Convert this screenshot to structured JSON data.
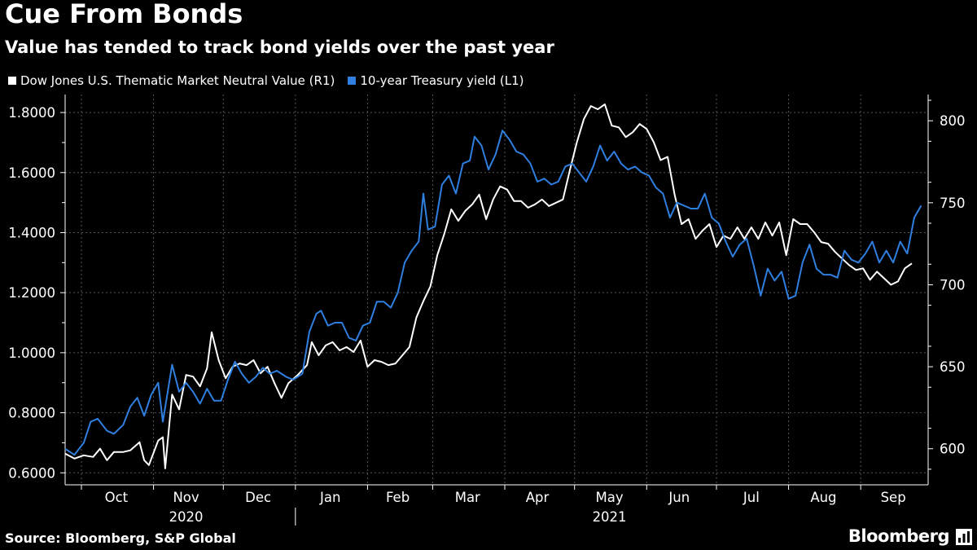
{
  "title": "Cue From Bonds",
  "subtitle": "Value has tended to track bond yields over the past year",
  "source": "Source: Bloomberg, S&P Global",
  "brand": "Bloomberg",
  "colors": {
    "value_series": "#ffffff",
    "yield_series": "#2f7fe0",
    "grid": "#555555",
    "background": "#000000"
  },
  "chart_data": {
    "type": "line",
    "title": "Cue From Bonds",
    "subtitle": "Value has tended to track bond yields over the past year",
    "legend_position": "top-left",
    "grid": true,
    "x_range": [
      "2020-09-24",
      "2021-09-30"
    ],
    "x_ticks": [
      {
        "label": "Oct",
        "date": "2020-10-16"
      },
      {
        "label": "Nov",
        "date": "2020-11-15"
      },
      {
        "label": "Dec",
        "date": "2020-12-16"
      },
      {
        "label": "Jan",
        "date": "2021-01-16"
      },
      {
        "label": "Feb",
        "date": "2021-02-14"
      },
      {
        "label": "Mar",
        "date": "2021-03-16"
      },
      {
        "label": "Apr",
        "date": "2021-04-15"
      },
      {
        "label": "May",
        "date": "2021-05-16"
      },
      {
        "label": "Jun",
        "date": "2021-06-15"
      },
      {
        "label": "Jul",
        "date": "2021-07-16"
      },
      {
        "label": "Aug",
        "date": "2021-08-16"
      },
      {
        "label": "Sep",
        "date": "2021-09-15"
      }
    ],
    "x_year_labels": [
      {
        "label": "2020",
        "date": "2020-11-15"
      },
      {
        "label": "2021",
        "date": "2021-05-16"
      }
    ],
    "left_axis": {
      "label": "L1",
      "range": [
        0.56,
        1.86
      ],
      "ticks": [
        0.6,
        0.8,
        1.0,
        1.2,
        1.4,
        1.6,
        1.8
      ],
      "tick_labels": [
        "0.6000",
        "0.8000",
        "1.0000",
        "1.2000",
        "1.4000",
        "1.6000",
        "1.8000"
      ]
    },
    "right_axis": {
      "label": "R1",
      "range": [
        578,
        816
      ],
      "ticks": [
        600,
        650,
        700,
        750,
        800
      ],
      "tick_labels": [
        "600",
        "650",
        "700",
        "750",
        "800"
      ]
    },
    "series": [
      {
        "name": "Dow Jones U.S. Thematic Market Neutral Value (R1)",
        "axis": "right",
        "color": "#ffffff",
        "points": [
          [
            "2020-09-24",
            597
          ],
          [
            "2020-09-28",
            594
          ],
          [
            "2020-10-02",
            596
          ],
          [
            "2020-10-06",
            595
          ],
          [
            "2020-10-09",
            600
          ],
          [
            "2020-10-12",
            593
          ],
          [
            "2020-10-15",
            598
          ],
          [
            "2020-10-19",
            598
          ],
          [
            "2020-10-22",
            599
          ],
          [
            "2020-10-26",
            604
          ],
          [
            "2020-10-28",
            593
          ],
          [
            "2020-10-30",
            590
          ],
          [
            "2020-11-03",
            605
          ],
          [
            "2020-11-05",
            607
          ],
          [
            "2020-11-06",
            588
          ],
          [
            "2020-11-09",
            633
          ],
          [
            "2020-11-12",
            624
          ],
          [
            "2020-11-15",
            645
          ],
          [
            "2020-11-18",
            644
          ],
          [
            "2020-11-21",
            638
          ],
          [
            "2020-11-24",
            649
          ],
          [
            "2020-11-26",
            671
          ],
          [
            "2020-11-29",
            654
          ],
          [
            "2020-12-02",
            643
          ],
          [
            "2020-12-05",
            650
          ],
          [
            "2020-12-08",
            652
          ],
          [
            "2020-12-11",
            651
          ],
          [
            "2020-12-14",
            654
          ],
          [
            "2020-12-17",
            646
          ],
          [
            "2020-12-20",
            650
          ],
          [
            "2020-12-23",
            640
          ],
          [
            "2020-12-26",
            631
          ],
          [
            "2020-12-29",
            640
          ],
          [
            "2021-01-02",
            645
          ],
          [
            "2021-01-06",
            651
          ],
          [
            "2021-01-08",
            665
          ],
          [
            "2021-01-11",
            657
          ],
          [
            "2021-01-14",
            663
          ],
          [
            "2021-01-17",
            665
          ],
          [
            "2021-01-20",
            660
          ],
          [
            "2021-01-23",
            662
          ],
          [
            "2021-01-26",
            659
          ],
          [
            "2021-01-29",
            666
          ],
          [
            "2021-02-01",
            650
          ],
          [
            "2021-02-04",
            654
          ],
          [
            "2021-02-07",
            653
          ],
          [
            "2021-02-10",
            651
          ],
          [
            "2021-02-13",
            652
          ],
          [
            "2021-02-16",
            657
          ],
          [
            "2021-02-19",
            662
          ],
          [
            "2021-02-22",
            680
          ],
          [
            "2021-02-25",
            690
          ],
          [
            "2021-02-28",
            699
          ],
          [
            "2021-03-03",
            718
          ],
          [
            "2021-03-06",
            731
          ],
          [
            "2021-03-09",
            746
          ],
          [
            "2021-03-12",
            739
          ],
          [
            "2021-03-15",
            745
          ],
          [
            "2021-03-18",
            749
          ],
          [
            "2021-03-21",
            755
          ],
          [
            "2021-03-24",
            740
          ],
          [
            "2021-03-27",
            752
          ],
          [
            "2021-03-30",
            760
          ],
          [
            "2021-04-02",
            758
          ],
          [
            "2021-04-05",
            751
          ],
          [
            "2021-04-08",
            751
          ],
          [
            "2021-04-11",
            747
          ],
          [
            "2021-04-14",
            749
          ],
          [
            "2021-04-17",
            752
          ],
          [
            "2021-04-20",
            748
          ],
          [
            "2021-04-23",
            750
          ],
          [
            "2021-04-26",
            752
          ],
          [
            "2021-04-29",
            770
          ],
          [
            "2021-05-02",
            787
          ],
          [
            "2021-05-05",
            801
          ],
          [
            "2021-05-08",
            809
          ],
          [
            "2021-05-11",
            807
          ],
          [
            "2021-05-14",
            810
          ],
          [
            "2021-05-17",
            797
          ],
          [
            "2021-05-20",
            796
          ],
          [
            "2021-05-23",
            790
          ],
          [
            "2021-05-26",
            793
          ],
          [
            "2021-05-29",
            798
          ],
          [
            "2021-06-01",
            795
          ],
          [
            "2021-06-04",
            787
          ],
          [
            "2021-06-07",
            776
          ],
          [
            "2021-06-10",
            778
          ],
          [
            "2021-06-13",
            755
          ],
          [
            "2021-06-16",
            737
          ],
          [
            "2021-06-19",
            740
          ],
          [
            "2021-06-22",
            728
          ],
          [
            "2021-06-25",
            733
          ],
          [
            "2021-06-28",
            737
          ],
          [
            "2021-07-01",
            723
          ],
          [
            "2021-07-04",
            730
          ],
          [
            "2021-07-07",
            728
          ],
          [
            "2021-07-10",
            735
          ],
          [
            "2021-07-13",
            728
          ],
          [
            "2021-07-16",
            735
          ],
          [
            "2021-07-19",
            728
          ],
          [
            "2021-07-22",
            738
          ],
          [
            "2021-07-25",
            730
          ],
          [
            "2021-07-28",
            738
          ],
          [
            "2021-07-31",
            718
          ],
          [
            "2021-08-03",
            740
          ],
          [
            "2021-08-06",
            737
          ],
          [
            "2021-08-09",
            737
          ],
          [
            "2021-08-12",
            732
          ],
          [
            "2021-08-15",
            726
          ],
          [
            "2021-08-18",
            725
          ],
          [
            "2021-08-21",
            720
          ],
          [
            "2021-08-24",
            716
          ],
          [
            "2021-08-27",
            712
          ],
          [
            "2021-08-30",
            709
          ],
          [
            "2021-09-02",
            710
          ],
          [
            "2021-09-05",
            703
          ],
          [
            "2021-09-08",
            708
          ],
          [
            "2021-09-11",
            704
          ],
          [
            "2021-09-14",
            700
          ],
          [
            "2021-09-17",
            702
          ],
          [
            "2021-09-20",
            710
          ],
          [
            "2021-09-23",
            713
          ]
        ]
      },
      {
        "name": "10-year Treasury yield (L1)",
        "axis": "left",
        "color": "#2f7fe0",
        "points": [
          [
            "2020-09-24",
            0.68
          ],
          [
            "2020-09-28",
            0.66
          ],
          [
            "2020-10-02",
            0.7
          ],
          [
            "2020-10-05",
            0.77
          ],
          [
            "2020-10-08",
            0.78
          ],
          [
            "2020-10-12",
            0.74
          ],
          [
            "2020-10-15",
            0.73
          ],
          [
            "2020-10-19",
            0.76
          ],
          [
            "2020-10-22",
            0.82
          ],
          [
            "2020-10-25",
            0.85
          ],
          [
            "2020-10-28",
            0.79
          ],
          [
            "2020-10-31",
            0.86
          ],
          [
            "2020-11-03",
            0.9
          ],
          [
            "2020-11-05",
            0.77
          ],
          [
            "2020-11-09",
            0.96
          ],
          [
            "2020-11-12",
            0.87
          ],
          [
            "2020-11-15",
            0.9
          ],
          [
            "2020-11-18",
            0.87
          ],
          [
            "2020-11-21",
            0.83
          ],
          [
            "2020-11-24",
            0.88
          ],
          [
            "2020-11-27",
            0.84
          ],
          [
            "2020-11-30",
            0.84
          ],
          [
            "2020-12-03",
            0.91
          ],
          [
            "2020-12-06",
            0.97
          ],
          [
            "2020-12-09",
            0.93
          ],
          [
            "2020-12-12",
            0.9
          ],
          [
            "2020-12-15",
            0.92
          ],
          [
            "2020-12-18",
            0.95
          ],
          [
            "2020-12-21",
            0.93
          ],
          [
            "2020-12-24",
            0.94
          ],
          [
            "2020-12-28",
            0.92
          ],
          [
            "2020-12-31",
            0.91
          ],
          [
            "2021-01-04",
            0.93
          ],
          [
            "2021-01-07",
            1.07
          ],
          [
            "2021-01-10",
            1.13
          ],
          [
            "2021-01-12",
            1.14
          ],
          [
            "2021-01-15",
            1.09
          ],
          [
            "2021-01-18",
            1.1
          ],
          [
            "2021-01-21",
            1.1
          ],
          [
            "2021-01-24",
            1.05
          ],
          [
            "2021-01-27",
            1.04
          ],
          [
            "2021-01-30",
            1.09
          ],
          [
            "2021-02-02",
            1.1
          ],
          [
            "2021-02-05",
            1.17
          ],
          [
            "2021-02-08",
            1.17
          ],
          [
            "2021-02-11",
            1.15
          ],
          [
            "2021-02-14",
            1.2
          ],
          [
            "2021-02-17",
            1.3
          ],
          [
            "2021-02-20",
            1.34
          ],
          [
            "2021-02-23",
            1.37
          ],
          [
            "2021-02-25",
            1.53
          ],
          [
            "2021-02-27",
            1.41
          ],
          [
            "2021-03-02",
            1.42
          ],
          [
            "2021-03-05",
            1.56
          ],
          [
            "2021-03-08",
            1.59
          ],
          [
            "2021-03-11",
            1.53
          ],
          [
            "2021-03-14",
            1.63
          ],
          [
            "2021-03-17",
            1.64
          ],
          [
            "2021-03-19",
            1.72
          ],
          [
            "2021-03-22",
            1.69
          ],
          [
            "2021-03-25",
            1.61
          ],
          [
            "2021-03-28",
            1.66
          ],
          [
            "2021-03-31",
            1.74
          ],
          [
            "2021-04-03",
            1.71
          ],
          [
            "2021-04-06",
            1.67
          ],
          [
            "2021-04-09",
            1.66
          ],
          [
            "2021-04-12",
            1.63
          ],
          [
            "2021-04-15",
            1.57
          ],
          [
            "2021-04-18",
            1.58
          ],
          [
            "2021-04-21",
            1.56
          ],
          [
            "2021-04-24",
            1.57
          ],
          [
            "2021-04-27",
            1.62
          ],
          [
            "2021-04-30",
            1.63
          ],
          [
            "2021-05-03",
            1.6
          ],
          [
            "2021-05-06",
            1.57
          ],
          [
            "2021-05-09",
            1.62
          ],
          [
            "2021-05-12",
            1.69
          ],
          [
            "2021-05-15",
            1.64
          ],
          [
            "2021-05-18",
            1.67
          ],
          [
            "2021-05-21",
            1.63
          ],
          [
            "2021-05-24",
            1.61
          ],
          [
            "2021-05-27",
            1.62
          ],
          [
            "2021-05-30",
            1.6
          ],
          [
            "2021-06-02",
            1.59
          ],
          [
            "2021-06-05",
            1.55
          ],
          [
            "2021-06-08",
            1.53
          ],
          [
            "2021-06-11",
            1.45
          ],
          [
            "2021-06-14",
            1.5
          ],
          [
            "2021-06-17",
            1.49
          ],
          [
            "2021-06-20",
            1.48
          ],
          [
            "2021-06-23",
            1.48
          ],
          [
            "2021-06-26",
            1.53
          ],
          [
            "2021-06-29",
            1.45
          ],
          [
            "2021-07-02",
            1.43
          ],
          [
            "2021-07-05",
            1.37
          ],
          [
            "2021-07-08",
            1.32
          ],
          [
            "2021-07-11",
            1.36
          ],
          [
            "2021-07-14",
            1.38
          ],
          [
            "2021-07-17",
            1.29
          ],
          [
            "2021-07-20",
            1.19
          ],
          [
            "2021-07-23",
            1.28
          ],
          [
            "2021-07-26",
            1.24
          ],
          [
            "2021-07-29",
            1.27
          ],
          [
            "2021-08-01",
            1.18
          ],
          [
            "2021-08-04",
            1.19
          ],
          [
            "2021-08-07",
            1.3
          ],
          [
            "2021-08-10",
            1.36
          ],
          [
            "2021-08-13",
            1.28
          ],
          [
            "2021-08-16",
            1.26
          ],
          [
            "2021-08-19",
            1.26
          ],
          [
            "2021-08-22",
            1.25
          ],
          [
            "2021-08-25",
            1.34
          ],
          [
            "2021-08-28",
            1.31
          ],
          [
            "2021-08-31",
            1.3
          ],
          [
            "2021-09-03",
            1.33
          ],
          [
            "2021-09-06",
            1.37
          ],
          [
            "2021-09-09",
            1.3
          ],
          [
            "2021-09-12",
            1.34
          ],
          [
            "2021-09-15",
            1.3
          ],
          [
            "2021-09-18",
            1.37
          ],
          [
            "2021-09-21",
            1.33
          ],
          [
            "2021-09-24",
            1.45
          ],
          [
            "2021-09-27",
            1.49
          ]
        ]
      }
    ]
  }
}
